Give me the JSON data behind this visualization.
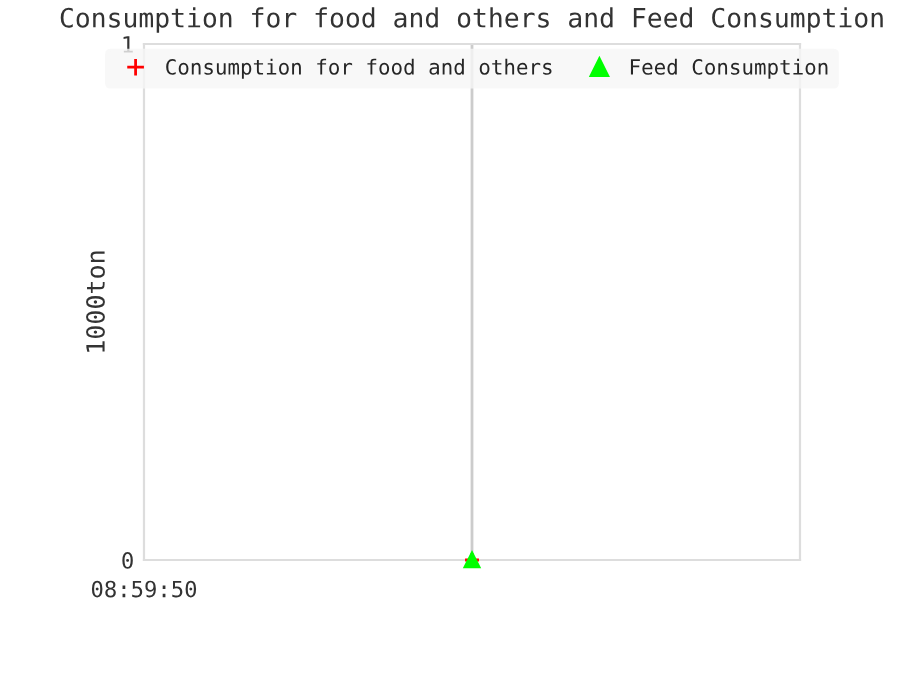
{
  "chart_data": {
    "type": "line",
    "title": "Consumption for food and others and Feed Consumption",
    "ylabel": "1000ton",
    "categories": [
      null
    ],
    "series": [
      {
        "name": "Consumption for food and others",
        "color": "#ff0000",
        "marker": "cross",
        "values": [
          0
        ]
      },
      {
        "name": "Feed Consumption",
        "color": "#00ff00",
        "marker": "triangle",
        "values": [
          0
        ]
      }
    ],
    "annotations": [
      "08:59:50"
    ],
    "ylim": [
      0,
      1
    ],
    "yticks": [
      {
        "value": 0,
        "label": "0"
      },
      {
        "value": 1,
        "label": "1"
      }
    ],
    "grid": "x",
    "legend": "top"
  }
}
